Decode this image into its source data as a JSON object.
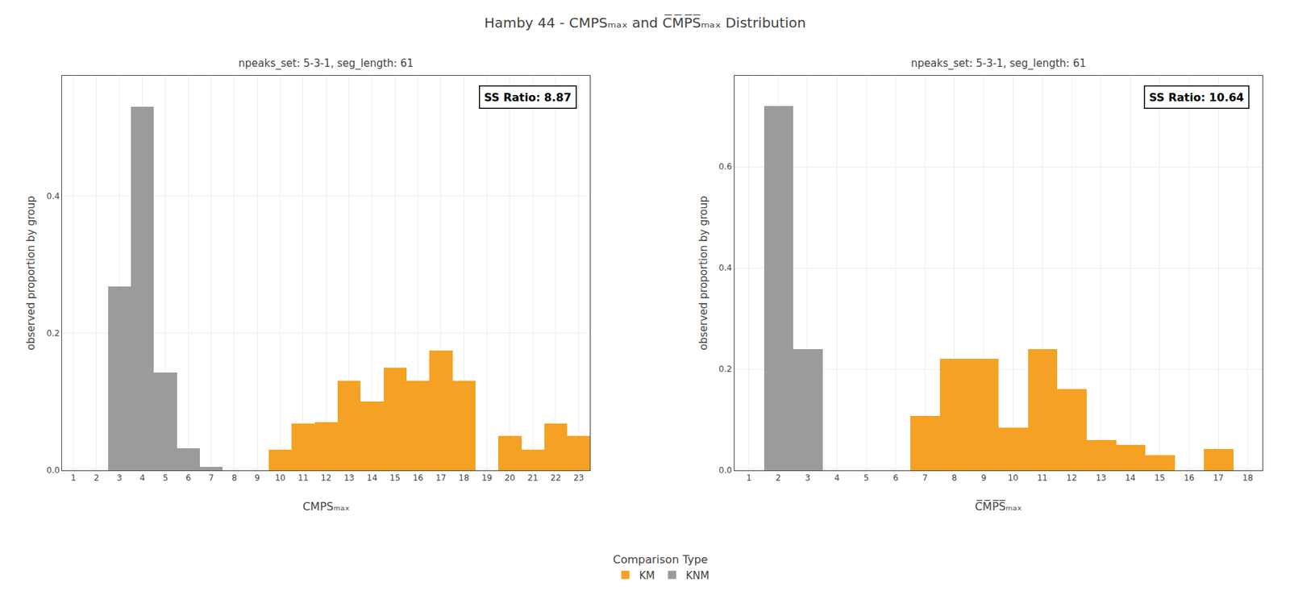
{
  "title": "Hamby 44 - CMPSₘₐₓ and C̅M̅P̅S̅ₘₐₓ Distribution",
  "legend_title": "Comparison Type",
  "chart_data": [
    {
      "type": "bar",
      "subtitle": "npeaks_set: 5-3-1, seg_length: 61",
      "x_label": "CMPSₘₐₓ",
      "y_label": "observed proportion by group",
      "annotations": [
        "SS Ratio: 8.87"
      ],
      "series": [
        {
          "name": "KM",
          "color": "#F5A124",
          "x": [
            10,
            11,
            12,
            13,
            14,
            15,
            16,
            17,
            18,
            20,
            21,
            22,
            23
          ],
          "values": [
            0.03,
            0.068,
            0.07,
            0.13,
            0.1,
            0.15,
            0.13,
            0.175,
            0.13,
            0.05,
            0.03,
            0.068,
            0.05
          ]
        },
        {
          "name": "KNM",
          "color": "#9B9B9B",
          "x": [
            3,
            4,
            5,
            6,
            7
          ],
          "values": [
            0.268,
            0.53,
            0.143,
            0.032,
            0.005
          ]
        }
      ],
      "xlim": [
        0.5,
        23.5
      ],
      "xticks": [
        1,
        2,
        3,
        4,
        5,
        6,
        7,
        8,
        9,
        10,
        11,
        12,
        13,
        14,
        15,
        16,
        17,
        18,
        19,
        20,
        21,
        22,
        23
      ],
      "ylim": [
        0.0,
        0.575
      ],
      "yticks": [
        {
          "value": 0.0,
          "label": "0.0"
        },
        0.2,
        0.4
      ],
      "grid": true,
      "legend": "bottom"
    },
    {
      "type": "bar",
      "subtitle": "npeaks_set: 5-3-1, seg_length: 61",
      "x_label": "C̅M̅P̅S̅ₘₐₓ",
      "y_label": "observed proportion by group",
      "annotations": [
        "SS Ratio: 10.64"
      ],
      "series": [
        {
          "name": "KM",
          "color": "#F5A124",
          "x": [
            7,
            8,
            9,
            10,
            11,
            12,
            13,
            14,
            15,
            17
          ],
          "values": [
            0.108,
            0.22,
            0.22,
            0.085,
            0.24,
            0.16,
            0.06,
            0.05,
            0.03,
            0.042
          ]
        },
        {
          "name": "KNM",
          "color": "#9B9B9B",
          "x": [
            2,
            3
          ],
          "values": [
            0.72,
            0.24
          ]
        }
      ],
      "xlim": [
        0.5,
        18.5
      ],
      "xticks": [
        1,
        2,
        3,
        4,
        5,
        6,
        7,
        8,
        9,
        10,
        11,
        12,
        13,
        14,
        15,
        16,
        17,
        18
      ],
      "ylim": [
        0.0,
        0.78
      ],
      "yticks": [
        {
          "value": 0.0,
          "label": "0.0"
        },
        0.2,
        0.4,
        0.6
      ],
      "grid": true,
      "legend": "bottom"
    }
  ]
}
